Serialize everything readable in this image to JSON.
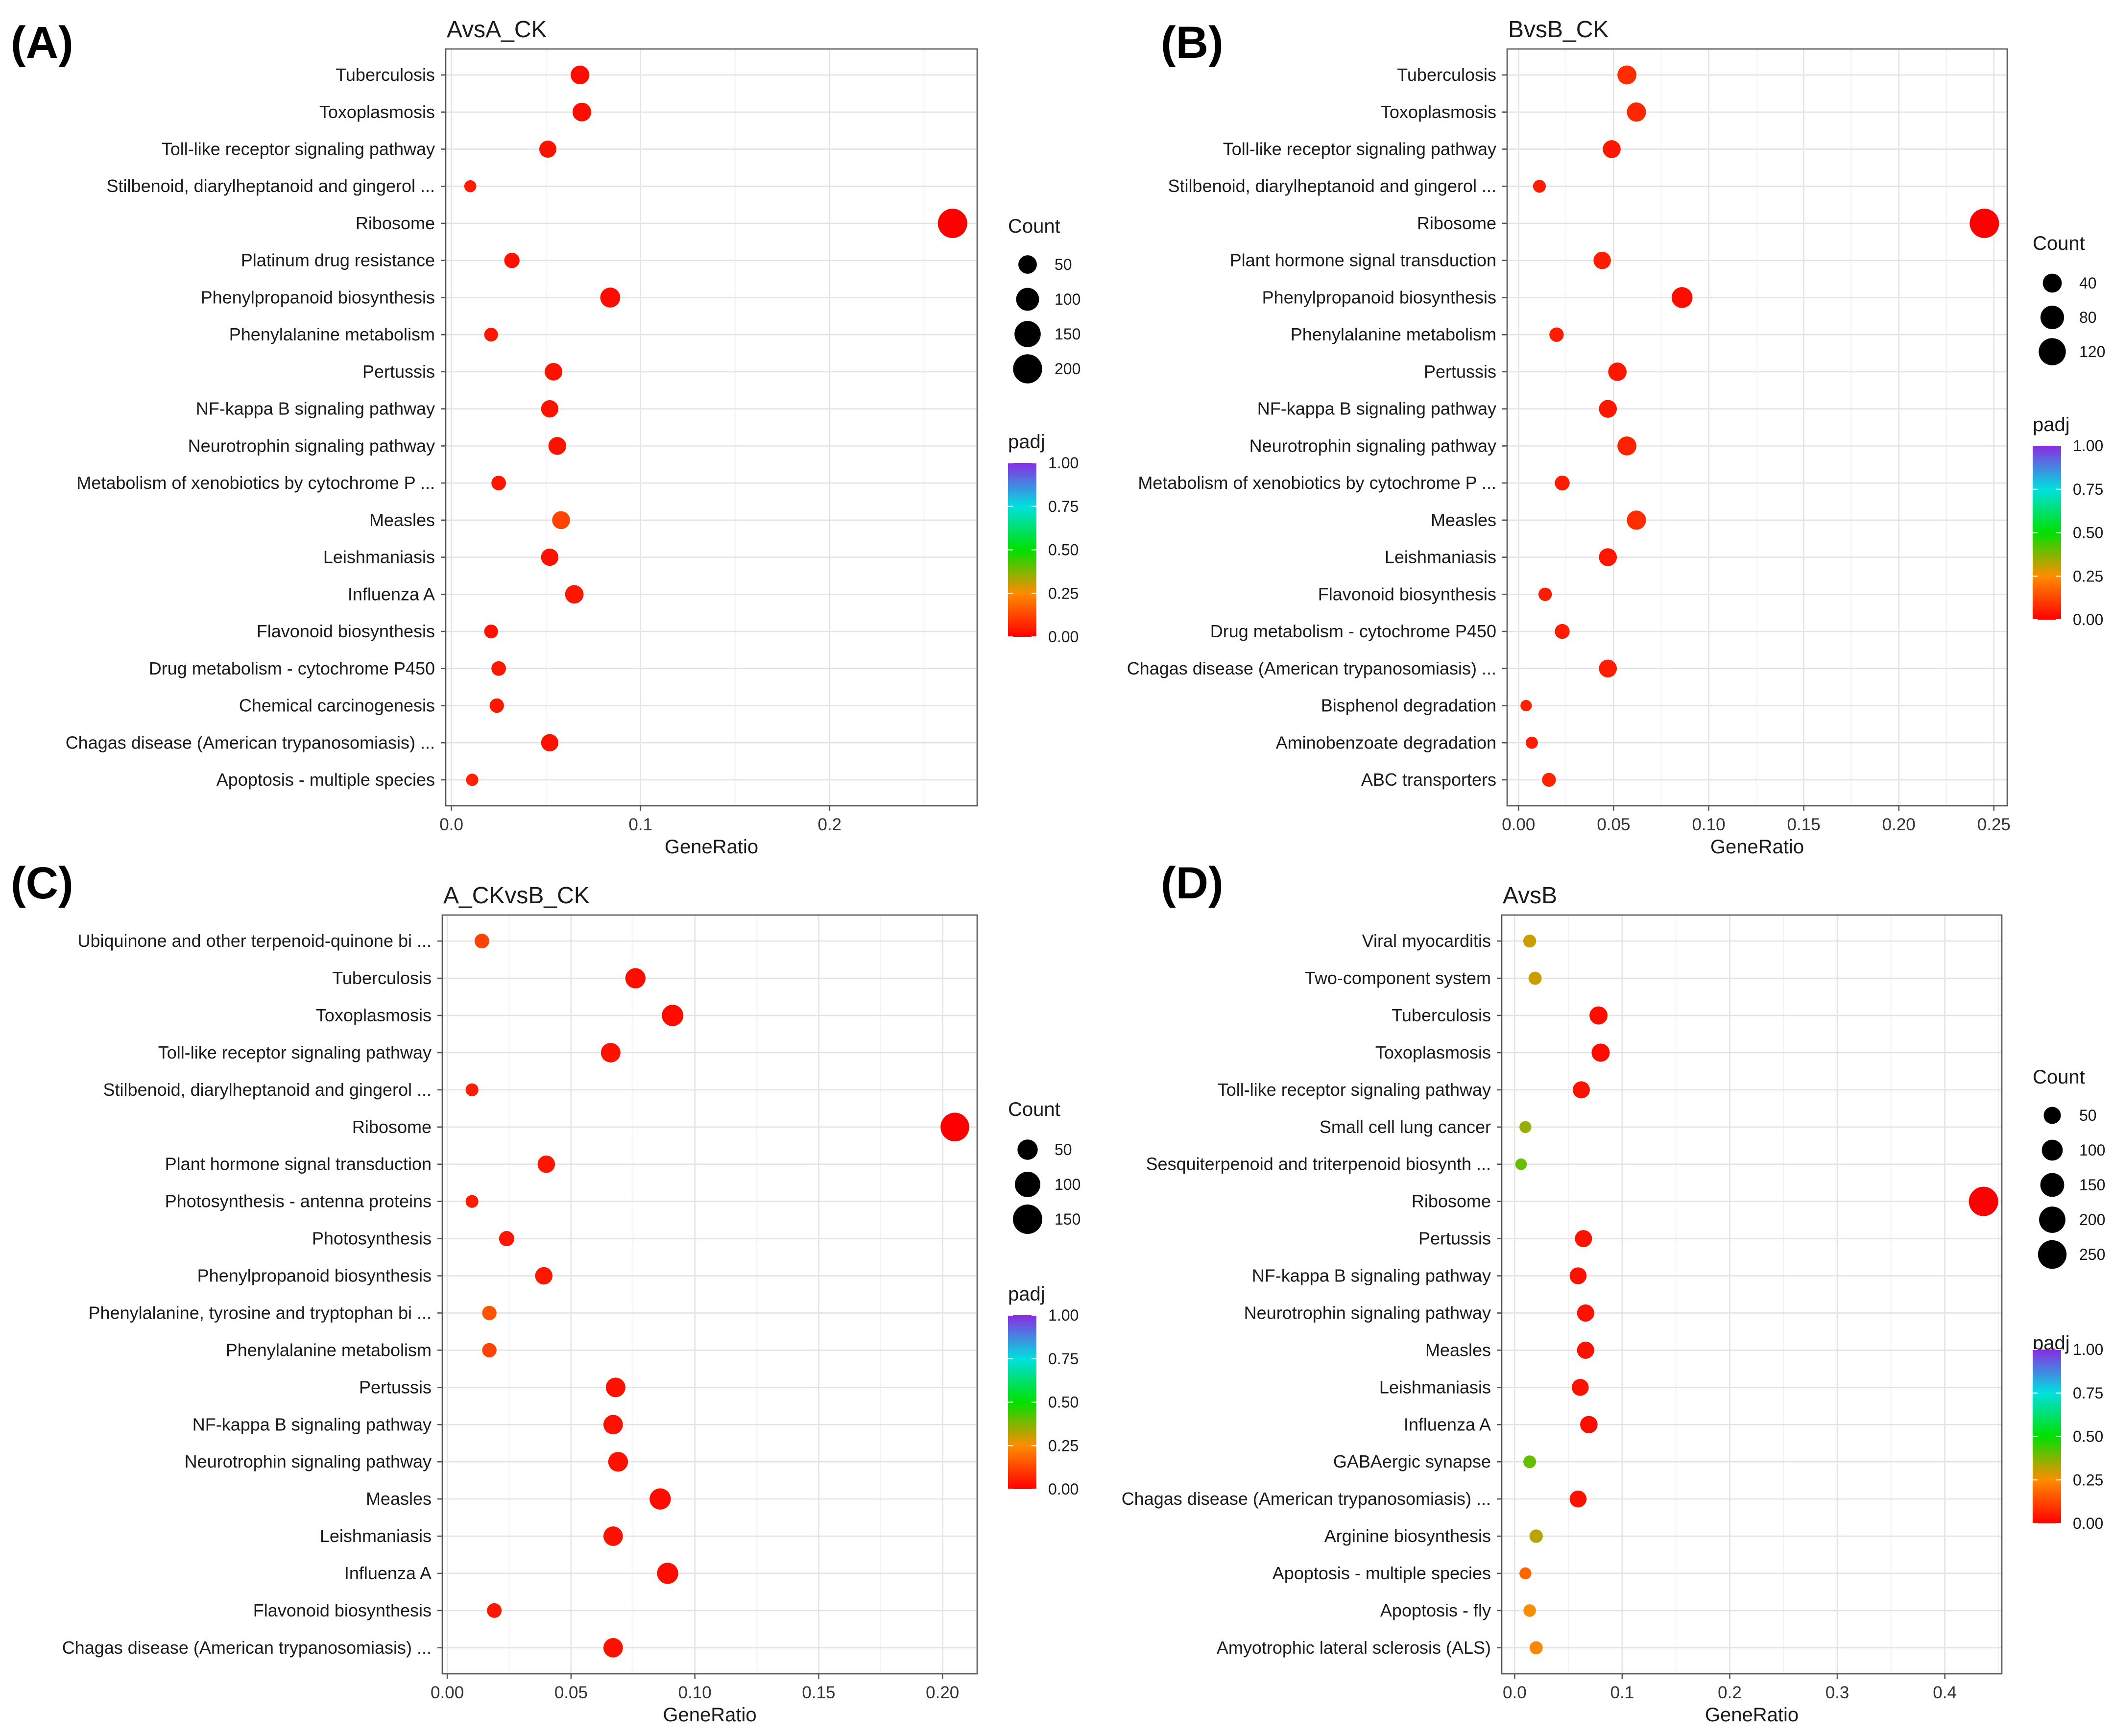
{
  "colors": {
    "padj_low": "#ff0000",
    "padj_q1": "#ff8c00",
    "padj_mid": "#00e000",
    "padj_q3": "#00e0e0",
    "padj_high": "#8a2be2",
    "point_outline": "none"
  },
  "chart_data": [
    {
      "type": "scatter",
      "panel_letter": "(A)",
      "title": "AvsA_CK",
      "xlabel": "GeneRatio",
      "ylabel": "",
      "xlim": [
        -0.003,
        0.278
      ],
      "xticks": [
        0.0,
        0.1,
        0.2
      ],
      "xtick_labels": [
        "0.0",
        "0.1",
        "0.2"
      ],
      "grid": true,
      "legend_position": "right",
      "size_legend": {
        "title": "Count",
        "values": [
          50,
          100,
          150,
          200
        ]
      },
      "color_legend": {
        "title": "padj",
        "ticks": [
          "1.00",
          "0.75",
          "0.50",
          "0.25",
          "0.00"
        ]
      },
      "categories": [
        "Tuberculosis",
        "Toxoplasmosis",
        "Toll-like receptor signaling pathway",
        "Stilbenoid, diarylheptanoid and gingerol  ...",
        "Ribosome",
        "Platinum drug resistance",
        "Phenylpropanoid biosynthesis",
        "Phenylalanine metabolism",
        "Pertussis",
        "NF-kappa B signaling pathway",
        "Neurotrophin signaling pathway",
        "Metabolism of xenobiotics by cytochrome P ...",
        "Measles",
        "Leishmaniasis",
        "Influenza A",
        "Flavonoid biosynthesis",
        "Drug metabolism - cytochrome P450",
        "Chemical carcinogenesis",
        "Chagas disease (American trypanosomiasis) ...",
        "Apoptosis - multiple species"
      ],
      "gene_ratio": [
        0.068,
        0.069,
        0.051,
        0.01,
        0.265,
        0.032,
        0.084,
        0.021,
        0.054,
        0.052,
        0.056,
        0.025,
        0.058,
        0.052,
        0.065,
        0.021,
        0.025,
        0.024,
        0.052,
        0.011
      ],
      "count": [
        52,
        52,
        38,
        8,
        205,
        25,
        65,
        16,
        42,
        40,
        44,
        20,
        45,
        40,
        50,
        16,
        20,
        19,
        40,
        9
      ],
      "padj": [
        0.02,
        0.02,
        0.03,
        0.05,
        0.0,
        0.03,
        0.02,
        0.04,
        0.03,
        0.03,
        0.03,
        0.04,
        0.12,
        0.03,
        0.04,
        0.03,
        0.04,
        0.04,
        0.03,
        0.06
      ]
    },
    {
      "type": "scatter",
      "panel_letter": "(B)",
      "title": "BvsB_CK",
      "xlabel": "GeneRatio",
      "ylabel": "",
      "xlim": [
        -0.006,
        0.257
      ],
      "xticks": [
        0.0,
        0.05,
        0.1,
        0.15,
        0.2,
        0.25
      ],
      "xtick_labels": [
        "0.00",
        "0.05",
        "0.10",
        "0.15",
        "0.20",
        "0.25"
      ],
      "grid": true,
      "legend_position": "right",
      "size_legend": {
        "title": "Count",
        "values": [
          40,
          80,
          120
        ]
      },
      "color_legend": {
        "title": "padj",
        "ticks": [
          "1.00",
          "0.75",
          "0.50",
          "0.25",
          "0.00"
        ]
      },
      "categories": [
        "Tuberculosis",
        "Toxoplasmosis",
        "Toll-like receptor signaling pathway",
        "Stilbenoid, diarylheptanoid and gingerol  ...",
        "Ribosome",
        "Plant hormone signal transduction",
        "Phenylpropanoid biosynthesis",
        "Phenylalanine metabolism",
        "Pertussis",
        "NF-kappa B signaling pathway",
        "Neurotrophin signaling pathway",
        "Metabolism of xenobiotics by cytochrome P ...",
        "Measles",
        "Leishmaniasis",
        "Flavonoid biosynthesis",
        "Drug metabolism - cytochrome P450",
        "Chagas disease (American trypanosomiasis) ...",
        "Bisphenol degradation",
        "Aminobenzoate degradation",
        "ABC transporters"
      ],
      "gene_ratio": [
        0.057,
        0.062,
        0.049,
        0.011,
        0.245,
        0.044,
        0.086,
        0.02,
        0.052,
        0.047,
        0.057,
        0.023,
        0.062,
        0.047,
        0.014,
        0.023,
        0.047,
        0.004,
        0.007,
        0.016
      ],
      "count": [
        40,
        42,
        33,
        8,
        150,
        30,
        55,
        14,
        36,
        33,
        40,
        16,
        42,
        33,
        10,
        16,
        33,
        4,
        6,
        12
      ],
      "padj": [
        0.08,
        0.07,
        0.04,
        0.05,
        0.0,
        0.05,
        0.02,
        0.05,
        0.04,
        0.04,
        0.06,
        0.05,
        0.08,
        0.04,
        0.05,
        0.05,
        0.05,
        0.06,
        0.05,
        0.06
      ]
    },
    {
      "type": "scatter",
      "panel_letter": "(C)",
      "title": "A_CKvsB_CK",
      "xlabel": "GeneRatio",
      "ylabel": "",
      "xlim": [
        -0.002,
        0.214
      ],
      "xticks": [
        0.0,
        0.05,
        0.1,
        0.15,
        0.2
      ],
      "xtick_labels": [
        "0.00",
        "0.05",
        "0.10",
        "0.15",
        "0.20"
      ],
      "grid": true,
      "legend_position": "right",
      "size_legend": {
        "title": "Count",
        "values": [
          50,
          100,
          150
        ]
      },
      "color_legend": {
        "title": "padj",
        "ticks": [
          "1.00",
          "0.75",
          "0.50",
          "0.25",
          "0.00"
        ]
      },
      "categories": [
        "Ubiquinone and other terpenoid-quinone bi ...",
        "Tuberculosis",
        "Toxoplasmosis",
        "Toll-like receptor signaling pathway",
        "Stilbenoid, diarylheptanoid and gingerol  ...",
        "Ribosome",
        "Plant hormone signal transduction",
        "Photosynthesis - antenna proteins",
        "Photosynthesis",
        "Phenylpropanoid biosynthesis",
        "Phenylalanine, tyrosine and tryptophan bi ...",
        "Phenylalanine metabolism",
        "Pertussis",
        "NF-kappa B signaling pathway",
        "Neurotrophin signaling pathway",
        "Measles",
        "Leishmaniasis",
        "Influenza A",
        "Flavonoid biosynthesis",
        "Chagas disease (American trypanosomiasis) ..."
      ],
      "gene_ratio": [
        0.014,
        0.076,
        0.091,
        0.066,
        0.01,
        0.205,
        0.04,
        0.01,
        0.024,
        0.039,
        0.017,
        0.017,
        0.068,
        0.067,
        0.069,
        0.086,
        0.067,
        0.089,
        0.019,
        0.067
      ],
      "count": [
        15,
        50,
        60,
        45,
        8,
        140,
        30,
        8,
        18,
        30,
        14,
        14,
        45,
        44,
        46,
        58,
        44,
        58,
        15,
        44
      ],
      "padj": [
        0.12,
        0.02,
        0.02,
        0.03,
        0.05,
        0.0,
        0.04,
        0.05,
        0.04,
        0.04,
        0.15,
        0.12,
        0.03,
        0.03,
        0.03,
        0.02,
        0.03,
        0.02,
        0.04,
        0.03
      ]
    },
    {
      "type": "scatter",
      "panel_letter": "(D)",
      "title": "AvsB",
      "xlabel": "GeneRatio",
      "ylabel": "",
      "xlim": [
        -0.012,
        0.453
      ],
      "xticks": [
        0.0,
        0.1,
        0.2,
        0.3,
        0.4
      ],
      "xtick_labels": [
        "0.0",
        "0.1",
        "0.2",
        "0.3",
        "0.4"
      ],
      "grid": true,
      "legend_position": "right",
      "size_legend": {
        "title": "Count",
        "values": [
          50,
          100,
          150,
          200,
          250
        ]
      },
      "color_legend": {
        "title": "padj",
        "ticks": [
          "1.00",
          "0.75",
          "0.50",
          "0.25",
          "0.00"
        ]
      },
      "categories": [
        "Viral myocarditis",
        "Two-component system",
        "Tuberculosis",
        "Toxoplasmosis",
        "Toll-like receptor signaling pathway",
        "Small cell lung cancer",
        "Sesquiterpenoid and triterpenoid biosynth ...",
        "Ribosome",
        "Pertussis",
        "NF-kappa B signaling pathway",
        "Neurotrophin signaling pathway",
        "Measles",
        "Leishmaniasis",
        "Influenza A",
        "GABAergic synapse",
        "Chagas disease (American trypanosomiasis) ...",
        "Arginine biosynthesis",
        "Apoptosis - multiple species",
        "Apoptosis - fly",
        "Amyotrophic lateral sclerosis (ALS)"
      ],
      "gene_ratio": [
        0.014,
        0.019,
        0.078,
        0.08,
        0.062,
        0.01,
        0.006,
        0.436,
        0.064,
        0.059,
        0.066,
        0.066,
        0.061,
        0.069,
        0.014,
        0.059,
        0.02,
        0.01,
        0.014,
        0.02
      ],
      "count": [
        15,
        16,
        62,
        63,
        50,
        10,
        8,
        270,
        50,
        48,
        51,
        51,
        48,
        54,
        14,
        48,
        18,
        10,
        13,
        16
      ],
      "padj": [
        0.3,
        0.3,
        0.02,
        0.02,
        0.03,
        0.35,
        0.4,
        0.0,
        0.03,
        0.03,
        0.03,
        0.03,
        0.03,
        0.02,
        0.4,
        0.03,
        0.32,
        0.18,
        0.26,
        0.24
      ]
    }
  ]
}
